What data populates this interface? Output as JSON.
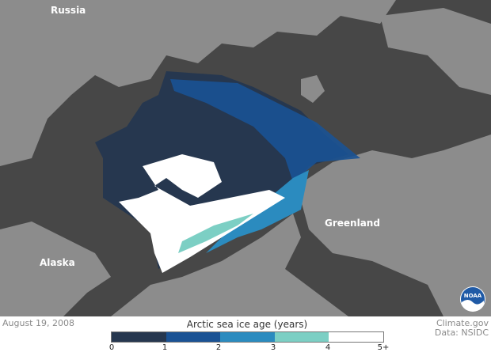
{
  "map": {
    "labels": {
      "russia": "Russia",
      "alaska": "Alaska",
      "greenland": "Greenland"
    },
    "colors": {
      "ocean": "#474747",
      "land": "#8c8c8c"
    }
  },
  "footer": {
    "date": "August 19, 2008",
    "credit": "Climate.gov",
    "source": "Data: NSIDC",
    "logo": "NOAA"
  },
  "legend": {
    "title": "Arctic sea ice age (years)",
    "bins": [
      {
        "range": "0-1",
        "color": "#26374f"
      },
      {
        "range": "1-2",
        "color": "#1a5294"
      },
      {
        "range": "2-3",
        "color": "#2b8bbf"
      },
      {
        "range": "3-4",
        "color": "#7ccfc4"
      },
      {
        "range": "4-5+",
        "color": "#ffffff"
      }
    ],
    "ticks": [
      "0",
      "1",
      "2",
      "3",
      "4",
      "5+"
    ]
  }
}
